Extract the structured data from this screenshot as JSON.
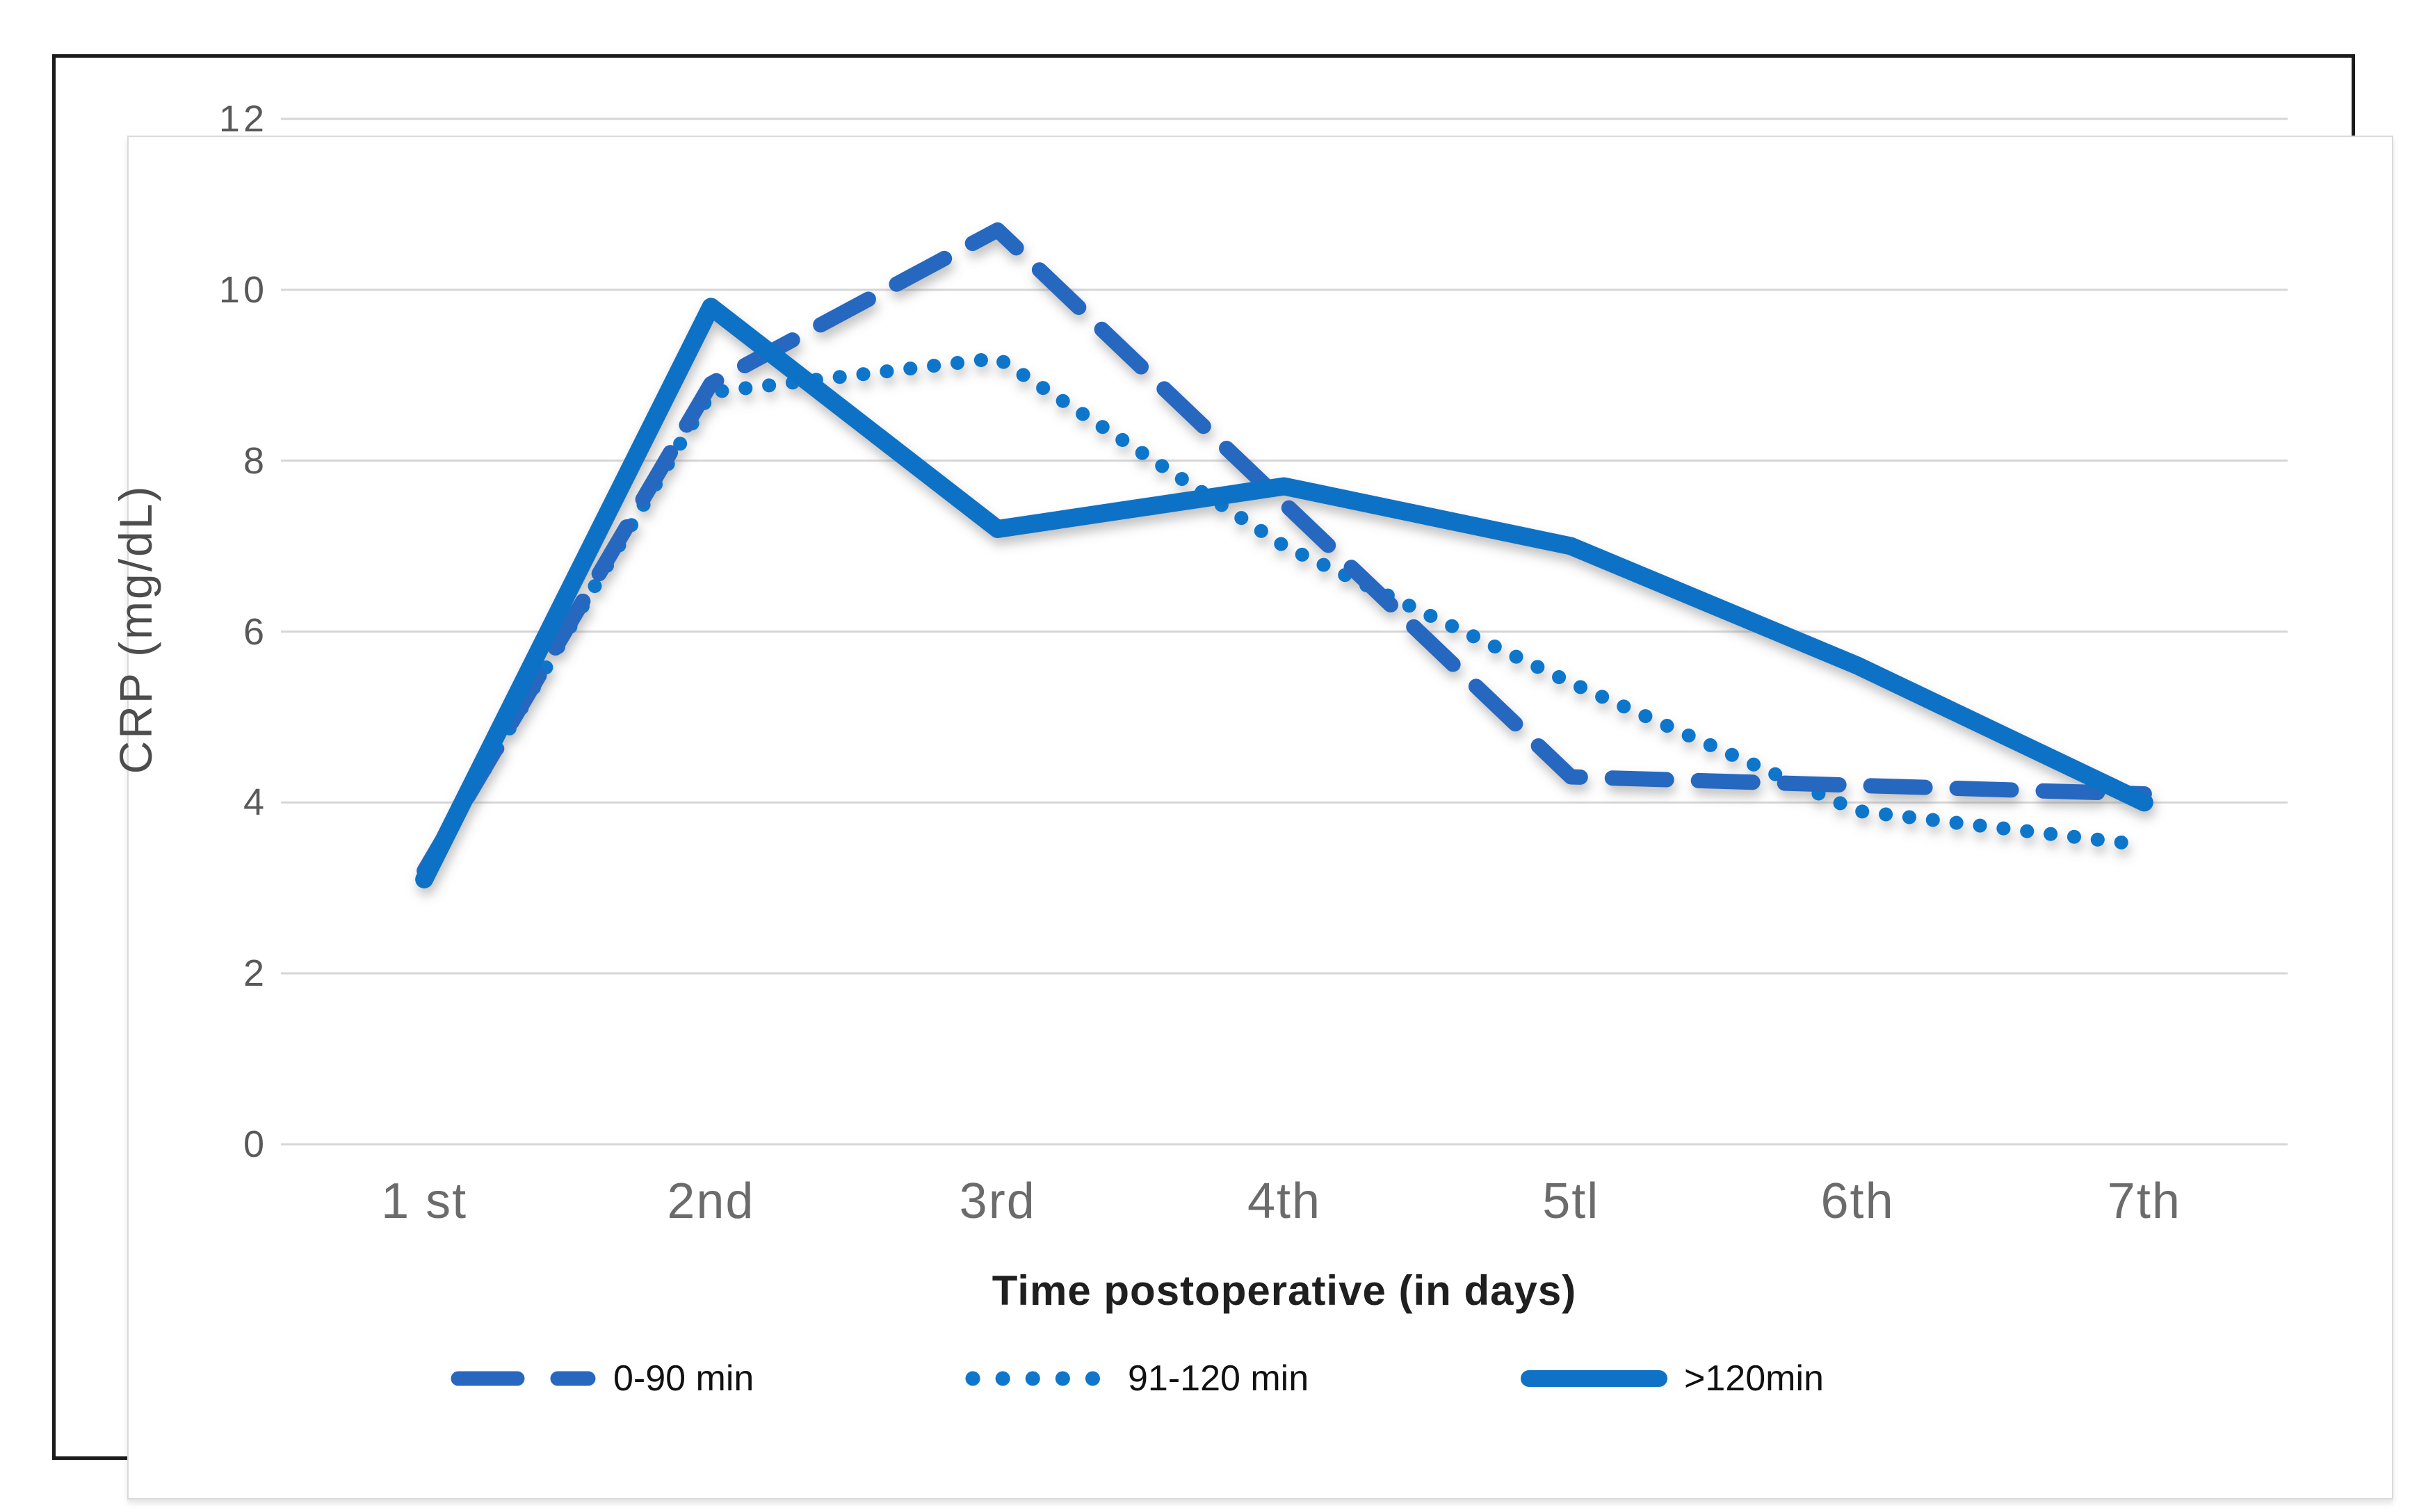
{
  "figure": {
    "y_axis_title": "CRP (mg/dL)",
    "x_axis_title": "Time postoperative (in days)",
    "colors": {
      "solid_line": "#0F72C6",
      "dashed_line": "#2767C0",
      "dotted_line": "#0E76CB",
      "gridline": "#D6D6D6",
      "tick_text": "#595959",
      "frame_border": "#1B1B1B",
      "panel_border": "#DADADA"
    }
  },
  "chart_data": {
    "type": "line",
    "title": "",
    "xlabel": "Time postoperative (in days)",
    "ylabel": "CRP (mg/dL)",
    "categories": [
      "1 st",
      "2nd",
      "3rd",
      "4th",
      "5tl",
      "6th",
      "7th"
    ],
    "series": [
      {
        "name": "0-90 min",
        "style": "dashed",
        "values": [
          3.2,
          8.9,
          10.7,
          7.5,
          4.3,
          4.2,
          4.1
        ]
      },
      {
        "name": "91-120 min",
        "style": "dotted",
        "values": [
          3.2,
          8.8,
          9.2,
          7.0,
          5.4,
          3.9,
          3.5
        ]
      },
      {
        "name": ">120min",
        "style": "solid",
        "values": [
          3.1,
          9.8,
          7.2,
          7.7,
          7.0,
          5.6,
          4.0
        ]
      }
    ],
    "ylim": [
      0,
      12
    ],
    "yticks": [
      0,
      2,
      4,
      6,
      8,
      10,
      12
    ],
    "grid": true,
    "vertical_grid": false,
    "legend_position": "bottom"
  },
  "legend": {
    "items": [
      {
        "label": "0-90 min",
        "style": "dashed"
      },
      {
        "label": "91-120 min",
        "style": "dotted"
      },
      {
        "label": ">120min",
        "style": "solid"
      }
    ]
  }
}
